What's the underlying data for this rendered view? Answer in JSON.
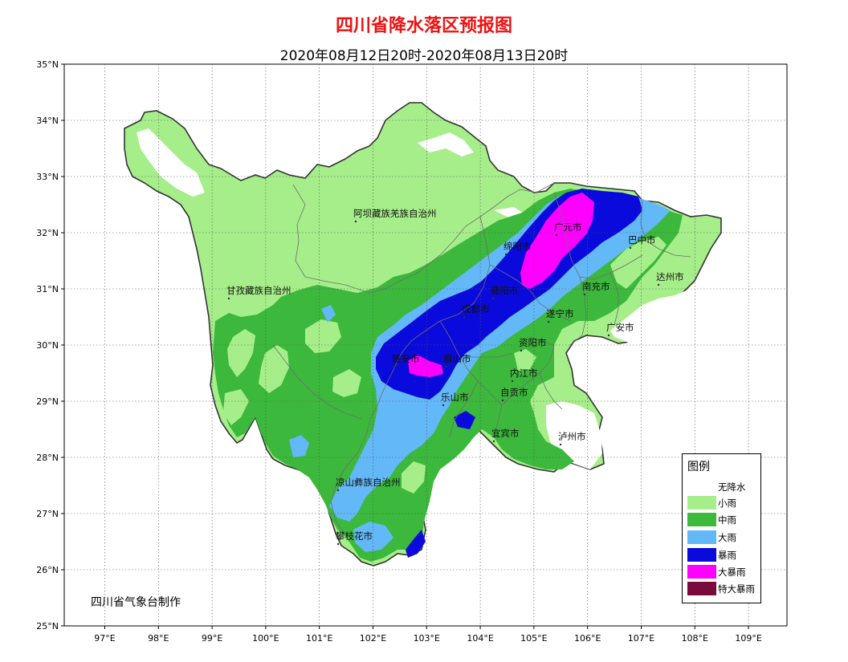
{
  "title": "四川省降水落区预报图",
  "subtitle": "2020年08月12日20时-2020年08月13日20时",
  "producer": "四川省气象台制作",
  "axes": {
    "lat_labels": [
      "25°N",
      "26°N",
      "27°N",
      "28°N",
      "29°N",
      "30°N",
      "31°N",
      "32°N",
      "33°N",
      "34°N",
      "35°N"
    ],
    "lon_labels": [
      "97°E",
      "98°E",
      "99°E",
      "100°E",
      "101°E",
      "102°E",
      "103°E",
      "104°E",
      "105°E",
      "106°E",
      "107°E",
      "108°E",
      "109°E"
    ]
  },
  "legend": {
    "title": "图例",
    "items": [
      {
        "label": "无降水",
        "color": "#ffffff"
      },
      {
        "label": "小雨",
        "color": "#a6ee8a"
      },
      {
        "label": "中雨",
        "color": "#3cb83c"
      },
      {
        "label": "大雨",
        "color": "#63b8f7"
      },
      {
        "label": "暴雨",
        "color": "#0a0adc"
      },
      {
        "label": "大暴雨",
        "color": "#ff00ff"
      },
      {
        "label": "特大暴雨",
        "color": "#7a0a3c"
      }
    ]
  },
  "places": [
    {
      "name": "阿坝藏族羌族自治州"
    },
    {
      "name": "甘孜藏族自治州"
    },
    {
      "name": "广元市"
    },
    {
      "name": "巴中市"
    },
    {
      "name": "达州市"
    },
    {
      "name": "绵阳市"
    },
    {
      "name": "德阳市"
    },
    {
      "name": "成都市"
    },
    {
      "name": "南充市"
    },
    {
      "name": "遂宁市"
    },
    {
      "name": "广安市"
    },
    {
      "name": "雅安市"
    },
    {
      "name": "眉山市"
    },
    {
      "name": "资阳市"
    },
    {
      "name": "内江市"
    },
    {
      "name": "自贡市"
    },
    {
      "name": "乐山市"
    },
    {
      "name": "宜宾市"
    },
    {
      "name": "泸州市"
    },
    {
      "name": "凉山彝族自治州"
    },
    {
      "name": "攀枝花市"
    }
  ]
}
